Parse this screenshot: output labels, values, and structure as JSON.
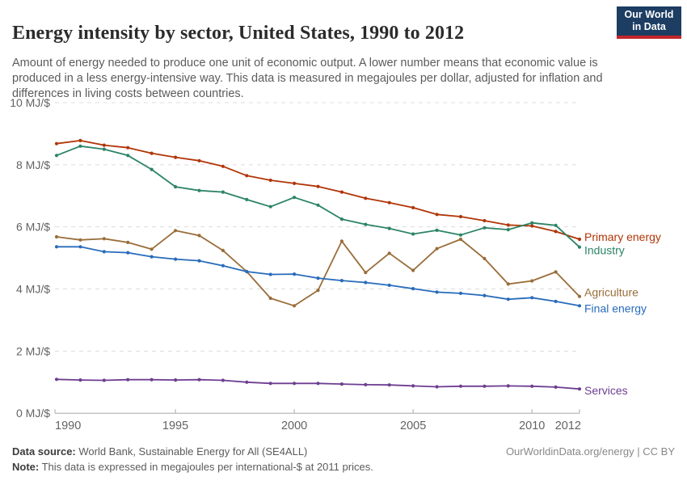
{
  "header": {
    "title": "Energy intensity by sector, United States, 1990 to 2012",
    "subtitle": "Amount of energy needed to produce one unit of economic output. A lower number means that economic value is produced in a less energy-intensive way. This data is measured in megajoules per dollar, adjusted for inflation and differences in living costs between countries.",
    "logo": {
      "line1": "Our World",
      "line2": "in Data",
      "bg_color": "#1d3d63",
      "bar_color": "#c3262a"
    }
  },
  "chart_data": {
    "type": "line",
    "title": "Energy intensity by sector, United States, 1990 to 2012",
    "unit": "MJ/$",
    "x": [
      1990,
      1991,
      1992,
      1993,
      1994,
      1995,
      1996,
      1997,
      1998,
      1999,
      2000,
      2001,
      2002,
      2003,
      2004,
      2005,
      2006,
      2007,
      2008,
      2009,
      2010,
      2011,
      2012
    ],
    "x_ticks": [
      1990,
      1995,
      2000,
      2005,
      2010,
      2012
    ],
    "x_tick_labels": [
      "1990",
      "1995",
      "2000",
      "2005",
      "2010",
      "2012"
    ],
    "y_ticks": [
      0,
      2,
      4,
      6,
      8,
      10
    ],
    "y_tick_labels": [
      "0 MJ/$",
      "2 MJ/$",
      "4 MJ/$",
      "6 MJ/$",
      "8 MJ/$",
      "10 MJ/$"
    ],
    "ylim": [
      0,
      10
    ],
    "grid": "horizontal-dashed",
    "legend_position": "right-end-labels",
    "series": [
      {
        "name": "Primary energy",
        "color": "#b13507",
        "label_dy": -3,
        "values": [
          8.68,
          8.78,
          8.63,
          8.55,
          8.37,
          8.24,
          8.13,
          7.95,
          7.65,
          7.5,
          7.4,
          7.3,
          7.12,
          6.92,
          6.78,
          6.62,
          6.4,
          6.33,
          6.2,
          6.06,
          6.03,
          5.85,
          5.6
        ]
      },
      {
        "name": "Industry",
        "color": "#2c8465",
        "label_dy": 4,
        "values": [
          8.3,
          8.6,
          8.5,
          8.3,
          7.85,
          7.29,
          7.17,
          7.12,
          6.88,
          6.65,
          6.95,
          6.7,
          6.25,
          6.08,
          5.95,
          5.77,
          5.89,
          5.74,
          5.97,
          5.91,
          6.13,
          6.05,
          5.35
        ]
      },
      {
        "name": "Agriculture",
        "color": "#996d39",
        "label_dy": -5,
        "values": [
          5.68,
          5.58,
          5.62,
          5.5,
          5.28,
          5.88,
          5.72,
          5.24,
          4.56,
          3.7,
          3.46,
          3.96,
          5.54,
          4.53,
          5.15,
          4.6,
          5.3,
          5.6,
          4.98,
          4.16,
          4.26,
          4.55,
          3.76
        ]
      },
      {
        "name": "Final energy",
        "color": "#286bbb",
        "label_dy": 3,
        "values": [
          5.36,
          5.36,
          5.2,
          5.17,
          5.04,
          4.96,
          4.91,
          4.75,
          4.56,
          4.47,
          4.48,
          4.35,
          4.27,
          4.21,
          4.12,
          4.01,
          3.9,
          3.86,
          3.79,
          3.67,
          3.72,
          3.6,
          3.46
        ]
      },
      {
        "name": "Services",
        "color": "#6d3e91",
        "label_dy": 2,
        "values": [
          1.09,
          1.07,
          1.06,
          1.08,
          1.08,
          1.07,
          1.08,
          1.06,
          1.0,
          0.96,
          0.96,
          0.96,
          0.94,
          0.92,
          0.91,
          0.88,
          0.85,
          0.87,
          0.87,
          0.88,
          0.87,
          0.84,
          0.78
        ]
      }
    ],
    "axis_color": "#a8a8a8",
    "grid_color": "#dcdcdc",
    "tick_label_color": "#636363"
  },
  "footer": {
    "source_label": "Data source:",
    "source_text": " World Bank, Sustainable Energy for All (SE4ALL)",
    "note_label": "Note:",
    "note_text": " This data is expressed in megajoules per international-$ at 2011 prices.",
    "link": "OurWorldinData.org/energy | CC BY"
  }
}
